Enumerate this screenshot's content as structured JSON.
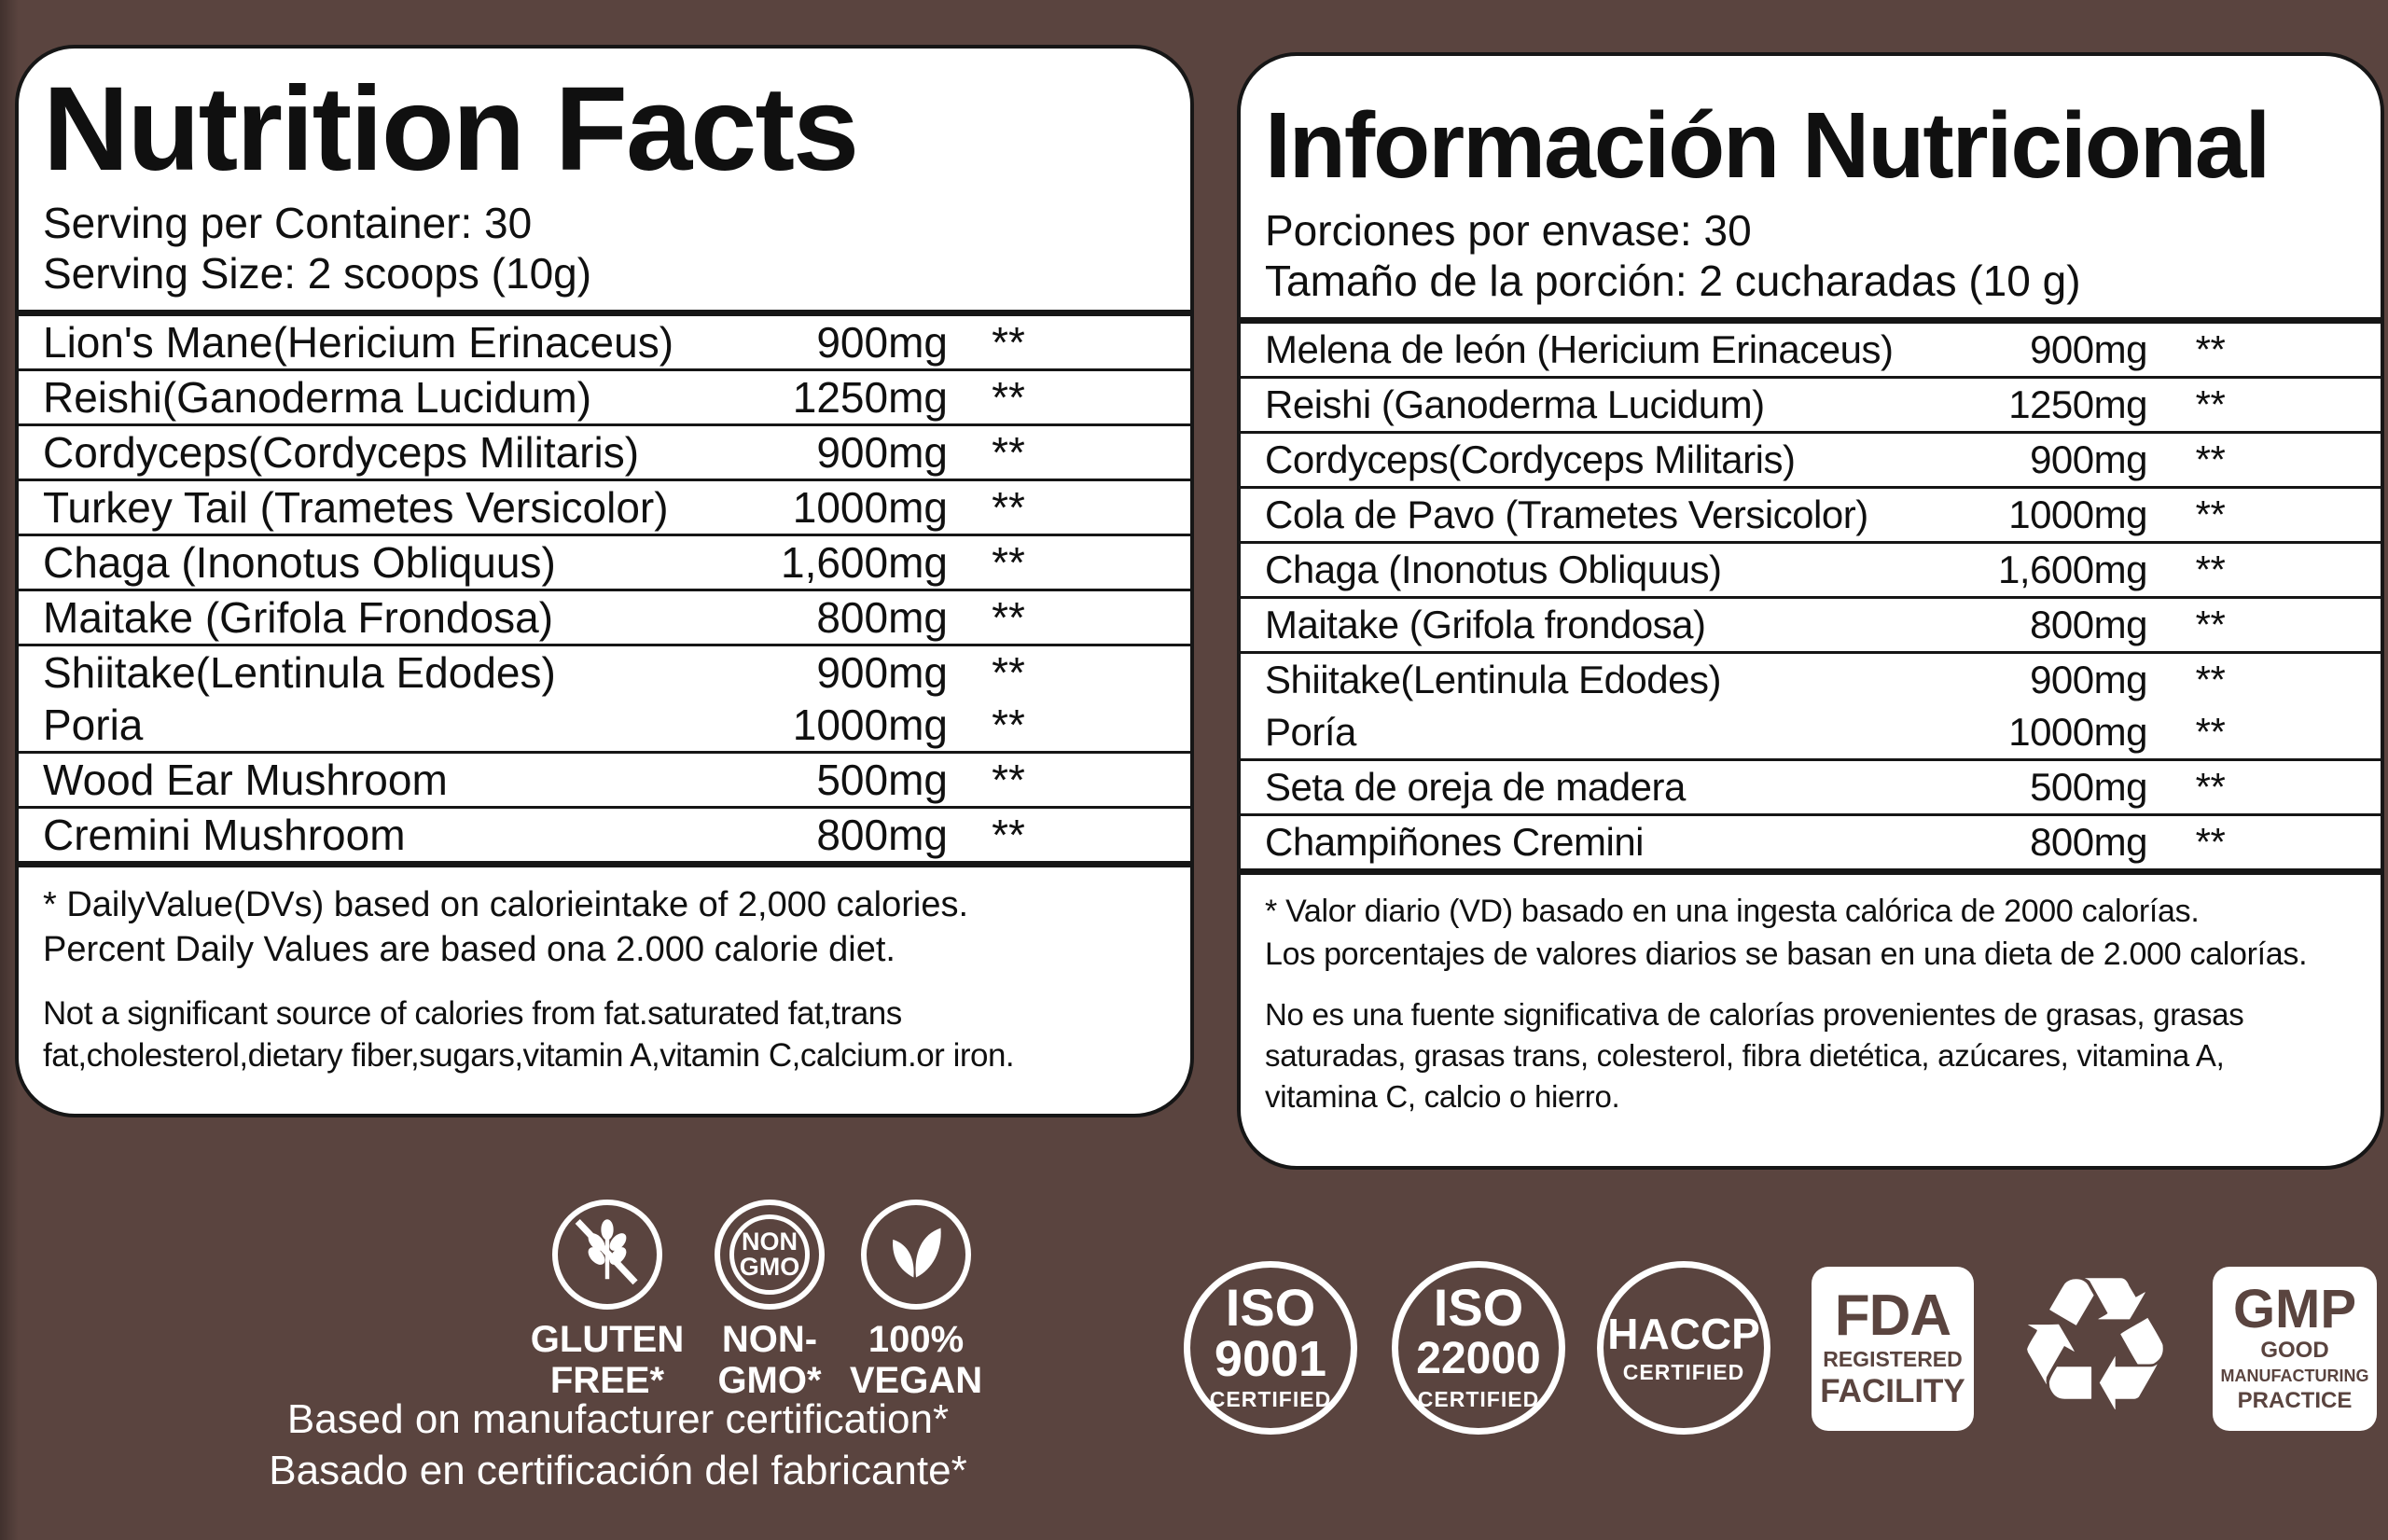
{
  "colors": {
    "background": "#5a443f",
    "panel": "#ffffff",
    "line": "#161616",
    "badge_text": "#5a443f",
    "text": "#101010",
    "white": "#ffffff"
  },
  "panel_en": {
    "title": "Nutrition Facts",
    "serving_line1": "Serving per Container: 30",
    "serving_line2": "Serving Size: 2 scoops (10g)",
    "cells": [
      {
        "lines": [
          {
            "name": "Lion's Mane(Hericium Erinaceus)",
            "amount": "900mg",
            "dv": "**"
          }
        ]
      },
      {
        "lines": [
          {
            "name": "Reishi(Ganoderma Lucidum)",
            "amount": "1250mg",
            "dv": "**"
          }
        ]
      },
      {
        "lines": [
          {
            "name": "Cordyceps(Cordyceps Militaris)",
            "amount": "900mg",
            "dv": "**"
          }
        ]
      },
      {
        "lines": [
          {
            "name": "Turkey Tail (Trametes Versicolor)",
            "amount": "1000mg",
            "dv": "**"
          }
        ]
      },
      {
        "lines": [
          {
            "name": "Chaga (Inonotus Obliquus)",
            "amount": "1,600mg",
            "dv": "**"
          }
        ]
      },
      {
        "lines": [
          {
            "name": "Maitake (Grifola Frondosa)",
            "amount": "800mg",
            "dv": "**"
          }
        ]
      },
      {
        "lines": [
          {
            "name": "Shiitake(Lentinula Edodes)",
            "amount": "900mg",
            "dv": "**"
          },
          {
            "name": "Poria",
            "amount": "1000mg",
            "dv": "**"
          }
        ]
      },
      {
        "lines": [
          {
            "name": "Wood Ear Mushroom",
            "amount": "500mg",
            "dv": "**"
          }
        ]
      },
      {
        "lines": [
          {
            "name": "Cremini Mushroom",
            "amount": "800mg",
            "dv": "**"
          }
        ]
      }
    ],
    "footnote1_line1": "* DailyValue(DVs) based on calorieintake of 2,000 calories.",
    "footnote1_line2": "Percent Daily Values are based ona 2.000 calorie diet.",
    "footnote2_line1": "Not a significant source of calories from fat.saturated fat,trans",
    "footnote2_line2": "fat,cholesterol,dietary fiber,sugars,vitamin A,vitamin C,calcium.or iron."
  },
  "panel_es": {
    "title": "Información Nutricional",
    "serving_line1": "Porciones por envase: 30",
    "serving_line2": "Tamaño de la porción: 2 cucharadas (10 g)",
    "cells": [
      {
        "lines": [
          {
            "name": "Melena de león (Hericium Erinaceus)",
            "amount": "900mg",
            "dv": "**"
          }
        ]
      },
      {
        "lines": [
          {
            "name": "Reishi (Ganoderma Lucidum)",
            "amount": "1250mg",
            "dv": "**"
          }
        ]
      },
      {
        "lines": [
          {
            "name": "Cordyceps(Cordyceps Militaris)",
            "amount": "900mg",
            "dv": "**"
          }
        ]
      },
      {
        "lines": [
          {
            "name": "Cola de Pavo (Trametes Versicolor)",
            "amount": "1000mg",
            "dv": "**"
          }
        ]
      },
      {
        "lines": [
          {
            "name": "Chaga (Inonotus Obliquus)",
            "amount": "1,600mg",
            "dv": "**"
          }
        ]
      },
      {
        "lines": [
          {
            "name": "Maitake (Grifola frondosa)",
            "amount": "800mg",
            "dv": "**"
          }
        ]
      },
      {
        "lines": [
          {
            "name": "Shiitake(Lentinula Edodes)",
            "amount": "900mg",
            "dv": "**"
          },
          {
            "name": "Poría",
            "amount": "1000mg",
            "dv": "**"
          }
        ]
      },
      {
        "lines": [
          {
            "name": "Seta de oreja de madera",
            "amount": "500mg",
            "dv": "**"
          }
        ]
      },
      {
        "lines": [
          {
            "name": "Champiñones Cremini",
            "amount": "800mg",
            "dv": "**"
          }
        ]
      }
    ],
    "footnote1_line1": "* Valor diario (VD) basado en una ingesta calórica de 2000 calorías.",
    "footnote1_line2": "Los porcentajes de valores diarios se basan en una dieta de 2.000 calorías.",
    "footnote2_line1": "No es una fuente significativa de calorías provenientes de grasas, grasas",
    "footnote2_line2": "saturadas, grasas trans, colesterol, fibra dietética, azúcares, vitamina A,",
    "footnote2_line3": "vitamina C, calcio o hierro."
  },
  "badges": {
    "gluten_free": {
      "label": "GLUTEN\nFREE*"
    },
    "non_gmo": {
      "circle1": "NON",
      "circle2": "GMO",
      "label": "NON-\nGMO*"
    },
    "vegan": {
      "label": "100%\nVEGAN"
    },
    "iso9001": {
      "l1": "ISO",
      "l2": "9001",
      "l3": "CERTIFIED"
    },
    "iso22000": {
      "l1": "ISO",
      "l2": "22000",
      "l3": "CERTIFIED"
    },
    "haccp": {
      "l1": "HACCP",
      "l2": "CERTIFIED"
    },
    "fda": {
      "l1": "FDA",
      "l2": "REGISTERED",
      "l3": "FACILITY"
    },
    "recycle_symbol": "♻",
    "gmp": {
      "l1": "GMP",
      "l2": "GOOD",
      "l3": "MANUFACTURING",
      "l4": "PRACTICE"
    }
  },
  "cert_note": {
    "line1": "Based on manufacturer certification*",
    "line2": "Basado en certificación del fabricante*"
  }
}
